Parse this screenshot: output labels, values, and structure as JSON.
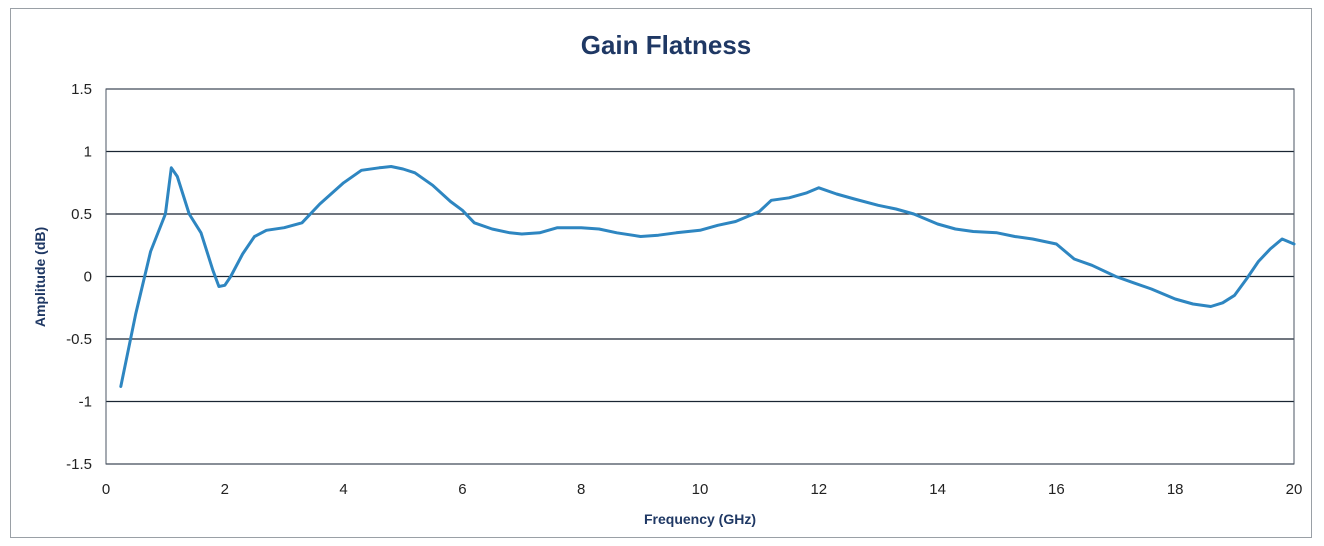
{
  "chart_data": {
    "type": "line",
    "title": "Gain Flatness",
    "xlabel": "Frequency (GHz)",
    "ylabel": "Amplitude (dB)",
    "xlim": [
      0,
      20
    ],
    "ylim": [
      -1.5,
      1.5
    ],
    "x_ticks": [
      "0",
      "2",
      "4",
      "6",
      "8",
      "10",
      "12",
      "14",
      "16",
      "18",
      "20"
    ],
    "y_ticks": [
      "1.5",
      "1",
      "0.5",
      "0",
      "-0.5",
      "-1",
      "-1.5"
    ],
    "grid": "horizontal",
    "line_color": "#2e86c1",
    "series": [
      {
        "x": [
          0.25,
          0.5,
          0.75,
          1.0,
          1.1,
          1.2,
          1.4,
          1.6,
          1.8,
          1.9,
          2.0,
          2.1,
          2.3,
          2.5,
          2.7,
          3.0,
          3.3,
          3.6,
          4.0,
          4.3,
          4.6,
          4.8,
          5.0,
          5.2,
          5.5,
          5.8,
          6.0,
          6.2,
          6.5,
          6.8,
          7.0,
          7.3,
          7.6,
          8.0,
          8.3,
          8.6,
          9.0,
          9.3,
          9.6,
          10.0,
          10.3,
          10.6,
          11.0,
          11.2,
          11.5,
          11.8,
          12.0,
          12.3,
          12.6,
          13.0,
          13.3,
          13.6,
          14.0,
          14.3,
          14.6,
          15.0,
          15.3,
          15.6,
          16.0,
          16.3,
          16.6,
          17.0,
          17.3,
          17.6,
          18.0,
          18.3,
          18.6,
          18.8,
          19.0,
          19.2,
          19.4,
          19.6,
          19.8,
          20.0
        ],
        "values": [
          -0.88,
          -0.3,
          0.2,
          0.5,
          0.87,
          0.8,
          0.5,
          0.35,
          0.05,
          -0.08,
          -0.07,
          0.0,
          0.18,
          0.32,
          0.37,
          0.39,
          0.43,
          0.58,
          0.75,
          0.85,
          0.87,
          0.88,
          0.86,
          0.83,
          0.73,
          0.6,
          0.53,
          0.43,
          0.38,
          0.35,
          0.34,
          0.35,
          0.39,
          0.39,
          0.38,
          0.35,
          0.32,
          0.33,
          0.35,
          0.37,
          0.41,
          0.44,
          0.52,
          0.61,
          0.63,
          0.67,
          0.71,
          0.66,
          0.62,
          0.57,
          0.54,
          0.5,
          0.42,
          0.38,
          0.36,
          0.35,
          0.32,
          0.3,
          0.26,
          0.14,
          0.09,
          0.0,
          -0.05,
          -0.1,
          -0.18,
          -0.22,
          -0.24,
          -0.21,
          -0.15,
          -0.02,
          0.12,
          0.22,
          0.3,
          0.26
        ]
      }
    ]
  }
}
